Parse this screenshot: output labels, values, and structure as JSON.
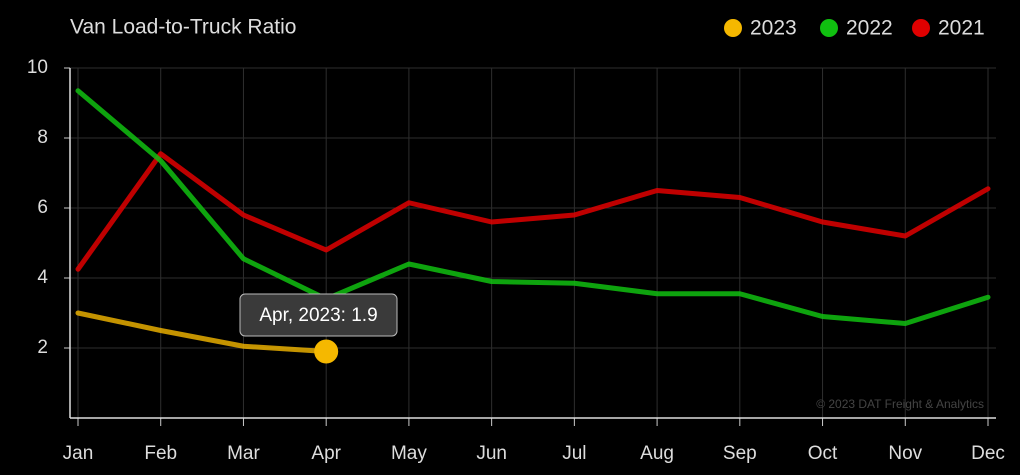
{
  "chart_data": {
    "type": "line",
    "title": "Van Load-to-Truck Ratio",
    "categories": [
      "Jan",
      "Feb",
      "Mar",
      "Apr",
      "May",
      "Jun",
      "Jul",
      "Aug",
      "Sep",
      "Oct",
      "Nov",
      "Dec"
    ],
    "series": [
      {
        "name": "2023",
        "color": "#f5b800",
        "values": [
          3.0,
          2.5,
          2.05,
          1.9,
          null,
          null,
          null,
          null,
          null,
          null,
          null,
          null
        ]
      },
      {
        "name": "2022",
        "color": "#10c010",
        "values": [
          9.35,
          7.35,
          4.55,
          3.4,
          4.4,
          3.9,
          3.85,
          3.55,
          3.55,
          2.9,
          2.7,
          3.45
        ]
      },
      {
        "name": "2021",
        "color": "#e00000",
        "values": [
          4.25,
          7.55,
          5.8,
          4.8,
          6.15,
          5.6,
          5.8,
          6.5,
          6.3,
          5.6,
          5.2,
          6.55
        ]
      }
    ],
    "ylim": [
      0,
      10
    ],
    "yticks": [
      2,
      4,
      6,
      8,
      10
    ],
    "grid": true,
    "tooltip": "Apr, 2023: 1.9",
    "watermark": "© 2023 DAT Freight & Analytics"
  }
}
